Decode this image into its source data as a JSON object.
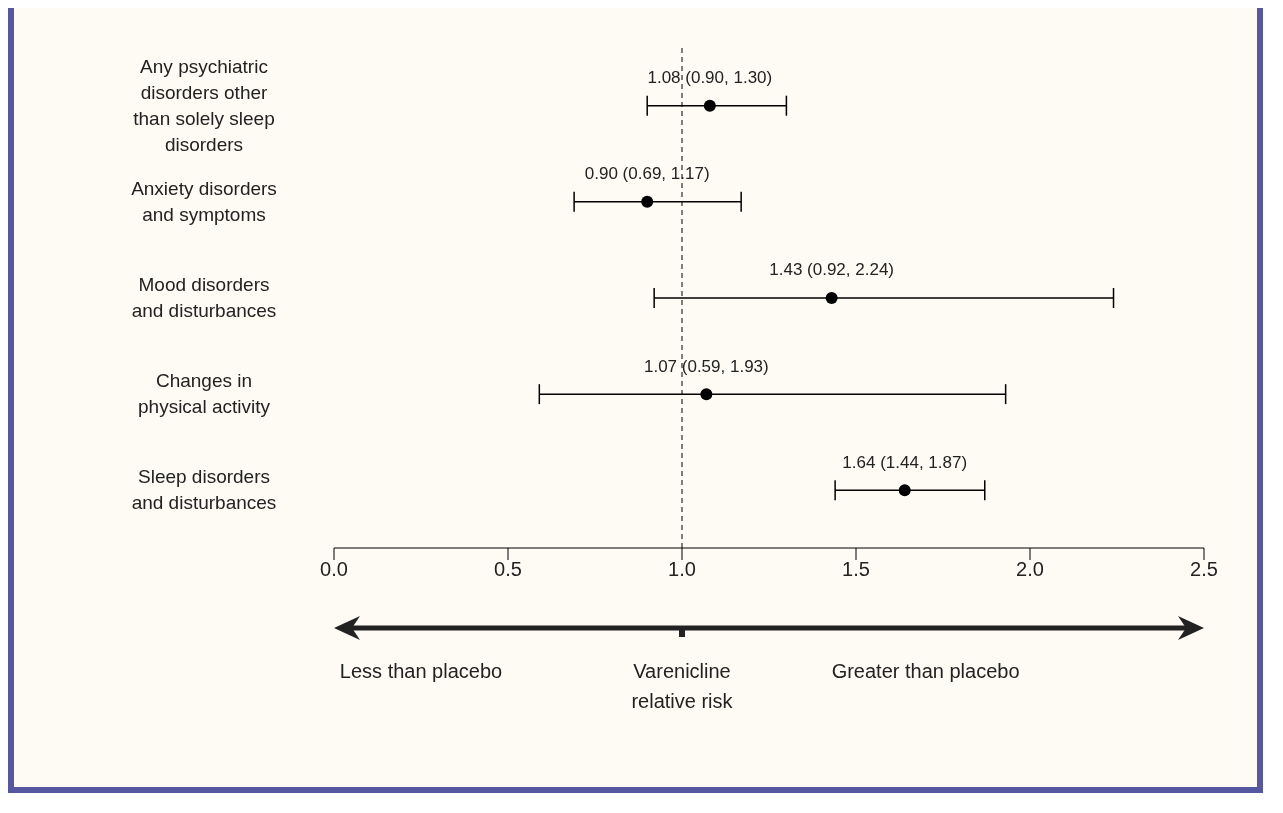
{
  "chart_data": {
    "type": "scatter",
    "orientation": "horizontal",
    "categories": [
      "Any psychiatric disorders other than solely sleep disorders",
      "Anxiety disorders and symptoms",
      "Mood disorders and disturbances",
      "Changes in physical activity",
      "Sleep disorders and disturbances"
    ],
    "values": [
      1.08,
      0.9,
      1.43,
      1.07,
      1.64
    ],
    "errors": [
      [
        0.9,
        1.3
      ],
      [
        0.69,
        1.17
      ],
      [
        0.92,
        2.24
      ],
      [
        0.59,
        1.93
      ],
      [
        1.44,
        1.87
      ]
    ],
    "value_labels": [
      "1.08 (0.90, 1.30)",
      "0.90 (0.69, 1.17)",
      "1.43 (0.92, 2.24)",
      "1.07 (0.59, 1.93)",
      "1.64 (1.44, 1.87)"
    ],
    "color": "#000000",
    "marker": "circle",
    "xlim": [
      0,
      2.5
    ],
    "xticks": [
      {
        "value": 0,
        "label": "0.0"
      },
      0.5,
      {
        "value": 1,
        "label": "1.0"
      },
      1.5,
      {
        "value": 2,
        "label": "2.0"
      },
      2.5
    ],
    "ref_lines": [
      {
        "axis": "x",
        "value": 1,
        "label": null,
        "line_style": "dashed",
        "color": "#000000"
      }
    ],
    "grid": false,
    "annotations": [
      "Less than placebo",
      "Varenicline relative risk",
      "Greater than placebo"
    ]
  }
}
